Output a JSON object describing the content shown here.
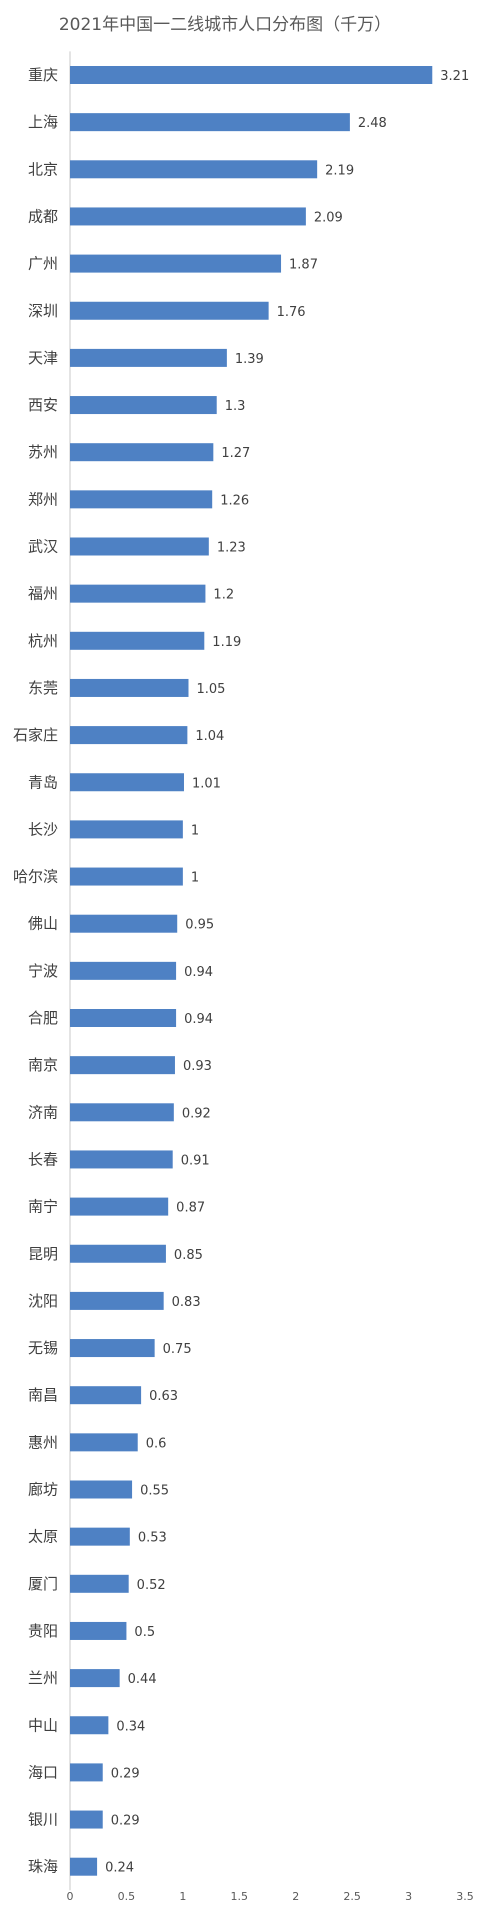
{
  "chart_data": {
    "type": "bar",
    "orientation": "horizontal",
    "title": "2021年中国一二线城市人口分布图（千万）",
    "categories": [
      "重庆",
      "上海",
      "北京",
      "成都",
      "广州",
      "深圳",
      "天津",
      "西安",
      "苏州",
      "郑州",
      "武汉",
      "福州",
      "杭州",
      "东莞",
      "石家庄",
      "青岛",
      "长沙",
      "哈尔滨",
      "佛山",
      "宁波",
      "合肥",
      "南京",
      "济南",
      "长春",
      "南宁",
      "昆明",
      "沈阳",
      "无锡",
      "南昌",
      "惠州",
      "廊坊",
      "太原",
      "厦门",
      "贵阳",
      "兰州",
      "中山",
      "海口",
      "银川",
      "珠海"
    ],
    "values": [
      3.21,
      2.48,
      2.19,
      2.09,
      1.87,
      1.76,
      1.39,
      1.3,
      1.27,
      1.26,
      1.23,
      1.2,
      1.19,
      1.05,
      1.04,
      1.01,
      1,
      1,
      0.95,
      0.94,
      0.94,
      0.93,
      0.92,
      0.91,
      0.87,
      0.85,
      0.83,
      0.75,
      0.63,
      0.6,
      0.55,
      0.53,
      0.52,
      0.5,
      0.44,
      0.34,
      0.29,
      0.29,
      0.24
    ],
    "value_labels": [
      "3.21",
      "2.48",
      "2.19",
      "2.09",
      "1.87",
      "1.76",
      "1.39",
      "1.3",
      "1.27",
      "1.26",
      "1.23",
      "1.2",
      "1.19",
      "1.05",
      "1.04",
      "1.01",
      "1",
      "1",
      "0.95",
      "0.94",
      "0.94",
      "0.93",
      "0.92",
      "0.91",
      "0.87",
      "0.85",
      "0.83",
      "0.75",
      "0.63",
      "0.6",
      "0.55",
      "0.53",
      "0.52",
      "0.5",
      "0.44",
      "0.34",
      "0.29",
      "0.29",
      "0.24"
    ],
    "xlim": [
      0,
      3.5
    ],
    "xticks": [
      "0",
      "0.5",
      "1",
      "1.5",
      "2",
      "2.5",
      "3",
      "3.5"
    ],
    "xtick_values": [
      0,
      0.5,
      1,
      1.5,
      2,
      2.5,
      3,
      3.5
    ],
    "grid": false,
    "bar_color": "#4e81c4"
  }
}
